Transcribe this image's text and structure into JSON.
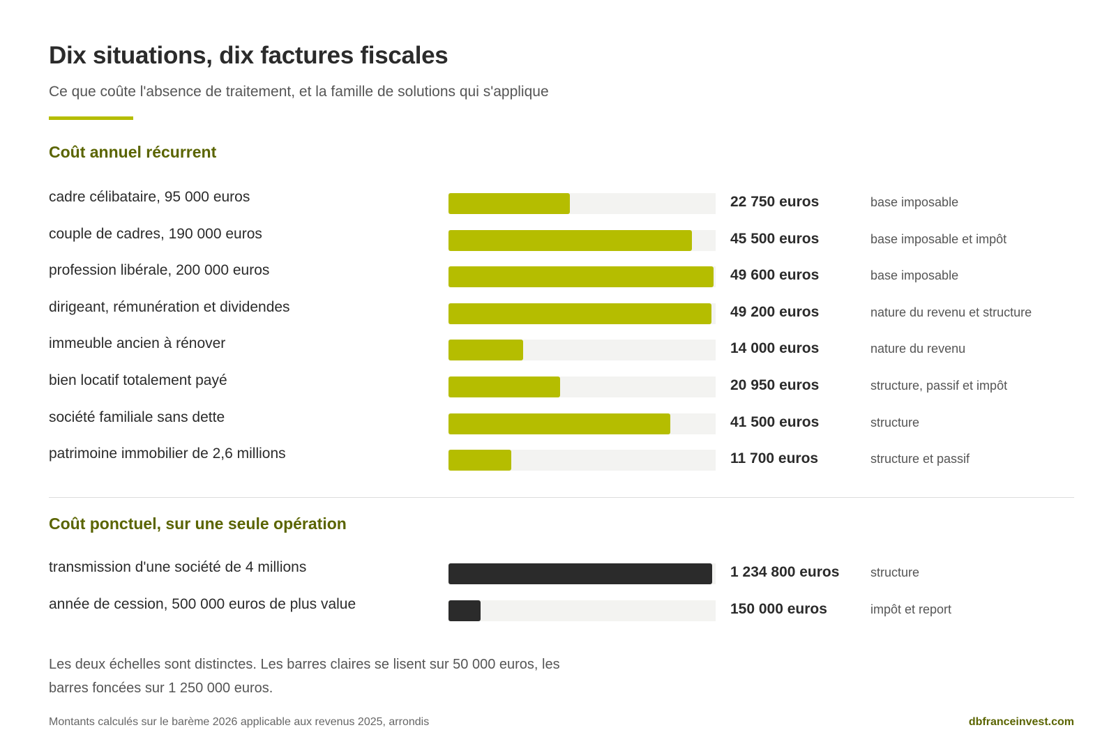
{
  "title": "Dix situations, dix factures fiscales",
  "subtitle": "Ce que coûte l'absence de traitement, et la famille de solutions qui s'applique",
  "scale_note": "Les deux échelles sont distinctes. Les barres claires se lisent sur 50 000 euros, les barres foncées sur 1 250 000 euros.",
  "footnote": "Montants calculés sur le barème 2026 applicable aux revenus 2025, arrondis",
  "brand": "dbfranceinvest.com",
  "colors": {
    "light_bar": "#b5bd00",
    "dark_bar": "#2b2b2b",
    "track": "#f3f3f1",
    "section_title": "#5a6400"
  },
  "chart_data": [
    {
      "type": "bar",
      "orientation": "horizontal",
      "title": "Coût annuel récurrent",
      "xlim": [
        0,
        50000
      ],
      "bar_color": "#b5bd00",
      "categories": [
        "cadre célibataire, 95 000 euros",
        "couple de cadres, 190 000 euros",
        "profession libérale, 200 000 euros",
        "dirigeant, rémunération et dividendes",
        "immeuble ancien à rénover",
        "bien locatif totalement payé",
        "société familiale sans dette",
        "patrimoine immobilier de 2,6 millions"
      ],
      "values": [
        22750,
        45500,
        49600,
        49200,
        14000,
        20950,
        41500,
        11700
      ],
      "value_labels": [
        "22 750 euros",
        "45 500 euros",
        "49 600 euros",
        "49 200 euros",
        "14 000 euros",
        "20 950 euros",
        "41 500 euros",
        "11 700 euros"
      ],
      "notes": [
        "base imposable",
        "base imposable et impôt",
        "base imposable",
        "nature du revenu et structure",
        "nature du revenu",
        "structure, passif et impôt",
        "structure",
        "structure et passif"
      ]
    },
    {
      "type": "bar",
      "orientation": "horizontal",
      "title": "Coût ponctuel, sur une seule opération",
      "xlim": [
        0,
        1250000
      ],
      "bar_color": "#2b2b2b",
      "categories": [
        "transmission d'une société de 4 millions",
        "année de cession, 500 000 euros de plus value"
      ],
      "values": [
        1234800,
        150000
      ],
      "value_labels": [
        "1 234 800 euros",
        "150 000 euros"
      ],
      "notes": [
        "structure",
        "impôt et report"
      ]
    }
  ]
}
